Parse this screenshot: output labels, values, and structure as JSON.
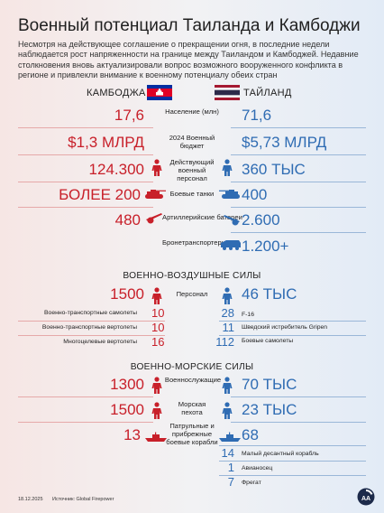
{
  "title": "Военный потенциал Таиланда и Камбоджи",
  "intro": "Несмотря на действующее соглашение о прекращении огня, в последние недели наблюдается рост напряженности на границе между Таиландом и Камбоджей. Недавние столкновения вновь актуализировали вопрос возможного вооруженного конфликта в регионе и привлекли внимание к военному потенциалу обеих стран",
  "countries": {
    "left": "КАМБОДЖА",
    "right": "ТАЙЛАНД"
  },
  "main_rows": [
    {
      "left": "17,6",
      "label": "Население (млн)",
      "right": "71,6"
    },
    {
      "left": "$1,3 МЛРД",
      "label": "2024 Военный бюджет",
      "right": "$5,73 МЛРД"
    },
    {
      "left": "124.300",
      "label": "Действующий военный персонал",
      "right": "360 ТЫС"
    },
    {
      "left": "БОЛЕЕ 200",
      "label": "Боевые танки",
      "right": "400"
    },
    {
      "left": "480",
      "label": "Артиллерийские батареи",
      "right": "2.600"
    },
    {
      "left": "",
      "label": "Бронетранспортеры",
      "right": "1.200+"
    }
  ],
  "air": {
    "heading": "ВОЕННО-ВОЗДУШНЫЕ СИЛЫ",
    "personnel": {
      "left": "1500",
      "label": "Персонал",
      "right": "46 ТЫС"
    },
    "left_items": [
      {
        "label": "Военно-транспортные самолеты",
        "value": "10"
      },
      {
        "label": "Военно-транспортные вертолеты",
        "value": "10"
      },
      {
        "label": "Многоцелевые вертолеты",
        "value": "16"
      }
    ],
    "right_items": [
      {
        "value": "28",
        "label": "F-16"
      },
      {
        "value": "11",
        "label": "Шведский истребитель Gripen"
      },
      {
        "value": "112",
        "label": "Боевые самолеты"
      }
    ]
  },
  "navy": {
    "heading": "ВОЕННО-МОРСКИЕ СИЛЫ",
    "rows": [
      {
        "left": "1300",
        "label": "Военнослужащие",
        "right": "70 ТЫС"
      },
      {
        "left": "1500",
        "label": "Морская пехота",
        "right": "23 ТЫС"
      },
      {
        "left": "13",
        "label": "Патрульные и прибрежные боевые корабли",
        "right": "68"
      }
    ],
    "right_items": [
      {
        "value": "14",
        "label": "Малый десантный корабль"
      },
      {
        "value": "1",
        "label": "Авианосец"
      },
      {
        "value": "7",
        "label": "Фрегат"
      }
    ]
  },
  "footer": {
    "date": "18.12.2025",
    "source": "Источник: Global Firepower",
    "logo": "AA"
  },
  "colors": {
    "cambodia": "#c8202a",
    "thailand": "#2f6cb3"
  },
  "icons": [
    "soldier-icon",
    "tank-icon",
    "artillery-icon",
    "apc-icon",
    "ship-icon",
    "logo-icon"
  ]
}
